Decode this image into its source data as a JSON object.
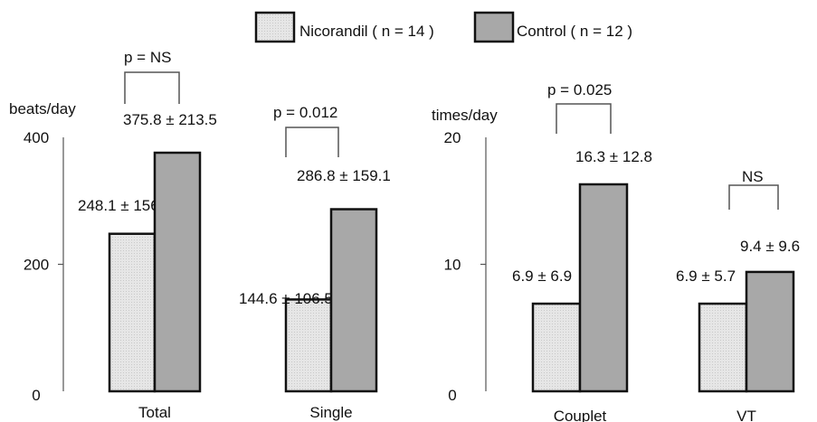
{
  "legend": {
    "items": [
      {
        "label": "Nicorandil ( n = 14 )",
        "color": "#e2e2e2",
        "pattern": "dotted-light"
      },
      {
        "label": "Control ( n = 12 )",
        "color": "#a8a8a8",
        "pattern": "solid-gray"
      }
    ]
  },
  "chart_data": [
    {
      "type": "bar",
      "ylabel": "beats/day",
      "ylim": [
        0,
        400
      ],
      "yticks": [
        {
          "value": 0,
          "label": "0"
        },
        {
          "value": 200,
          "label": "200"
        },
        {
          "value": 400,
          "label": "400"
        }
      ],
      "categories": [
        "Total",
        "Single"
      ],
      "series": [
        {
          "name": "Nicorandil ( n = 14 )",
          "values": [
            248.1,
            144.6
          ],
          "labels": [
            "248.1 ± 156.3",
            "144.6 ± 106.5"
          ]
        },
        {
          "name": "Control ( n = 12 )",
          "values": [
            375.8,
            286.8
          ],
          "labels": [
            "375.8 ± 213.5",
            "286.8 ± 159.1"
          ]
        }
      ],
      "significance": [
        {
          "category": "Total",
          "label": "p = NS"
        },
        {
          "category": "Single",
          "label": "p = 0.012"
        }
      ]
    },
    {
      "type": "bar",
      "ylabel": "times/day",
      "ylim": [
        0,
        20
      ],
      "yticks": [
        {
          "value": 0,
          "label": "0"
        },
        {
          "value": 10,
          "label": "10"
        },
        {
          "value": 20,
          "label": "20"
        }
      ],
      "categories": [
        "Couplet",
        "VT"
      ],
      "series": [
        {
          "name": "Nicorandil ( n = 14 )",
          "values": [
            6.9,
            6.9
          ],
          "labels": [
            "6.9 ± 6.9",
            "6.9 ± 5.7"
          ]
        },
        {
          "name": "Control ( n = 12 )",
          "values": [
            16.3,
            9.4
          ],
          "labels": [
            "16.3 ± 12.8",
            "9.4 ± 9.6"
          ]
        }
      ],
      "significance": [
        {
          "category": "Couplet",
          "label": "p = 0.025"
        },
        {
          "category": "VT",
          "label": "NS"
        }
      ]
    }
  ]
}
